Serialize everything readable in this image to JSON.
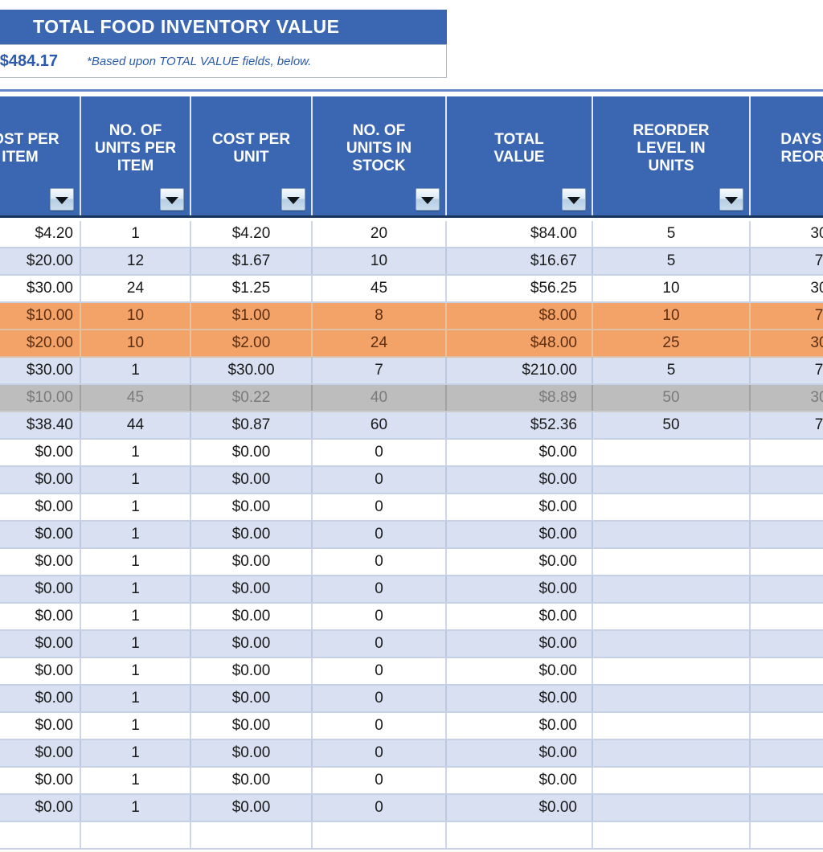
{
  "title_block": {
    "title": "TOTAL FOOD INVENTORY VALUE",
    "total_value": "$484.17",
    "note": "*Based upon TOTAL VALUE fields, below."
  },
  "table": {
    "columns": [
      {
        "label": "COST PER ITEM",
        "filter_icon": "chevron-down-icon"
      },
      {
        "label": "NO. OF UNITS PER ITEM",
        "filter_icon": "chevron-down-icon"
      },
      {
        "label": "COST PER UNIT",
        "filter_icon": "chevron-down-icon"
      },
      {
        "label": "NO. OF UNITS IN STOCK",
        "filter_icon": "chevron-down-icon"
      },
      {
        "label": "TOTAL VALUE",
        "filter_icon": "chevron-down-icon"
      },
      {
        "label": "REORDER LEVEL IN UNITS",
        "filter_icon": "chevron-down-icon"
      },
      {
        "label": "DAYS PER REORDER",
        "filter_icon": "chevron-down-icon"
      }
    ],
    "rows": [
      {
        "style": "white",
        "cells": [
          "$4.20",
          "1",
          "$4.20",
          "20",
          "$84.00",
          "5",
          "30"
        ]
      },
      {
        "style": "alt",
        "cells": [
          "$20.00",
          "12",
          "$1.67",
          "10",
          "$16.67",
          "5",
          "7"
        ]
      },
      {
        "style": "white",
        "cells": [
          "$30.00",
          "24",
          "$1.25",
          "45",
          "$56.25",
          "10",
          "30"
        ]
      },
      {
        "style": "orange",
        "cells": [
          "$10.00",
          "10",
          "$1.00",
          "8",
          "$8.00",
          "10",
          "7"
        ]
      },
      {
        "style": "orange",
        "cells": [
          "$20.00",
          "10",
          "$2.00",
          "24",
          "$48.00",
          "25",
          "30"
        ]
      },
      {
        "style": "alt",
        "cells": [
          "$30.00",
          "1",
          "$30.00",
          "7",
          "$210.00",
          "5",
          "7"
        ]
      },
      {
        "style": "gray",
        "cells": [
          "$10.00",
          "45",
          "$0.22",
          "40",
          "$8.89",
          "50",
          "30"
        ]
      },
      {
        "style": "alt",
        "cells": [
          "$38.40",
          "44",
          "$0.87",
          "60",
          "$52.36",
          "50",
          "7"
        ]
      },
      {
        "style": "white",
        "cells": [
          "$0.00",
          "1",
          "$0.00",
          "0",
          "$0.00",
          "",
          ""
        ]
      },
      {
        "style": "alt",
        "cells": [
          "$0.00",
          "1",
          "$0.00",
          "0",
          "$0.00",
          "",
          ""
        ]
      },
      {
        "style": "white",
        "cells": [
          "$0.00",
          "1",
          "$0.00",
          "0",
          "$0.00",
          "",
          ""
        ]
      },
      {
        "style": "alt",
        "cells": [
          "$0.00",
          "1",
          "$0.00",
          "0",
          "$0.00",
          "",
          ""
        ]
      },
      {
        "style": "white",
        "cells": [
          "$0.00",
          "1",
          "$0.00",
          "0",
          "$0.00",
          "",
          ""
        ]
      },
      {
        "style": "alt",
        "cells": [
          "$0.00",
          "1",
          "$0.00",
          "0",
          "$0.00",
          "",
          ""
        ]
      },
      {
        "style": "white",
        "cells": [
          "$0.00",
          "1",
          "$0.00",
          "0",
          "$0.00",
          "",
          ""
        ]
      },
      {
        "style": "alt",
        "cells": [
          "$0.00",
          "1",
          "$0.00",
          "0",
          "$0.00",
          "",
          ""
        ]
      },
      {
        "style": "white",
        "cells": [
          "$0.00",
          "1",
          "$0.00",
          "0",
          "$0.00",
          "",
          ""
        ]
      },
      {
        "style": "alt",
        "cells": [
          "$0.00",
          "1",
          "$0.00",
          "0",
          "$0.00",
          "",
          ""
        ]
      },
      {
        "style": "white",
        "cells": [
          "$0.00",
          "1",
          "$0.00",
          "0",
          "$0.00",
          "",
          ""
        ]
      },
      {
        "style": "alt",
        "cells": [
          "$0.00",
          "1",
          "$0.00",
          "0",
          "$0.00",
          "",
          ""
        ]
      },
      {
        "style": "white",
        "cells": [
          "$0.00",
          "1",
          "$0.00",
          "0",
          "$0.00",
          "",
          ""
        ]
      },
      {
        "style": "alt",
        "cells": [
          "$0.00",
          "1",
          "$0.00",
          "0",
          "$0.00",
          "",
          ""
        ]
      },
      {
        "style": "white",
        "cells": [
          "",
          "",
          "",
          "",
          "",
          "",
          ""
        ]
      }
    ]
  },
  "colors": {
    "header_blue": "#3b67b2",
    "header_divider_navy": "#17365d",
    "row_alt_lavender": "#d8e0f2",
    "row_highlight_orange": "#f4a368",
    "row_inactive_gray": "#bdbdbd",
    "accent_text_blue": "#2a5aad",
    "gridline_blue": "#c6d1e6"
  }
}
